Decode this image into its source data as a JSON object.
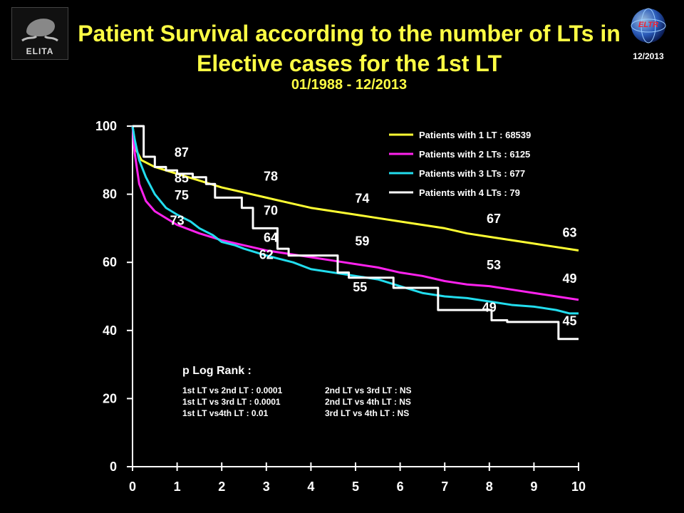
{
  "logos": {
    "left_label": "ELITA",
    "left_icon": "liver-hands-logo",
    "right_label": "ELTR",
    "right_icon": "globe-logo",
    "date_tag": "12/2013"
  },
  "title": "Patient Survival according to the number of LTs in Elective cases for the 1st LT",
  "subtitle": "01/1988 - 12/2013",
  "colors": {
    "background": "#000000",
    "title": "#ffff44",
    "series": [
      "#ffff33",
      "#ff22ee",
      "#22ddee",
      "#ffffff"
    ]
  },
  "stats": {
    "heading": "p Log Rank :",
    "rows": [
      [
        "1st LT vs 2nd LT : 0.0001",
        "2nd  LT vs 3rd LT  : NS"
      ],
      [
        "1st LT vs 3rd LT : 0.0001",
        "2nd LT vs 4th LT : NS"
      ],
      [
        "1st LT vs4th LT : 0.01",
        "3rd LT vs 4th LT : NS"
      ]
    ]
  },
  "chart_data": {
    "type": "line",
    "xlabel": "",
    "ylabel": "",
    "xlim": [
      0,
      10
    ],
    "ylim": [
      0,
      100
    ],
    "x_ticks": [
      0,
      1,
      2,
      3,
      4,
      5,
      6,
      7,
      8,
      9,
      10
    ],
    "y_ticks": [
      0,
      20,
      40,
      60,
      80,
      100
    ],
    "grid": false,
    "legend_position": "top-right",
    "series": [
      {
        "name": "Patients with 1 LT : 68539",
        "color": "#ffff33",
        "step": false,
        "points": [
          [
            0,
            100
          ],
          [
            0.08,
            93
          ],
          [
            0.2,
            90
          ],
          [
            0.5,
            88
          ],
          [
            1,
            86
          ],
          [
            1.5,
            84
          ],
          [
            2,
            82
          ],
          [
            2.5,
            80.5
          ],
          [
            3,
            79
          ],
          [
            3.5,
            77.5
          ],
          [
            4,
            76
          ],
          [
            4.5,
            75
          ],
          [
            5,
            74
          ],
          [
            5.5,
            73
          ],
          [
            6,
            72
          ],
          [
            6.5,
            71
          ],
          [
            7,
            70
          ],
          [
            7.5,
            68.5
          ],
          [
            8,
            67.5
          ],
          [
            8.5,
            66.5
          ],
          [
            9,
            65.5
          ],
          [
            9.5,
            64.5
          ],
          [
            10,
            63.5
          ]
        ]
      },
      {
        "name": "Patients with 2 LTs : 6125",
        "color": "#ff22ee",
        "step": false,
        "points": [
          [
            0,
            100
          ],
          [
            0.05,
            92
          ],
          [
            0.15,
            83
          ],
          [
            0.3,
            78
          ],
          [
            0.5,
            75
          ],
          [
            1,
            71
          ],
          [
            1.5,
            68.5
          ],
          [
            2,
            66.5
          ],
          [
            2.5,
            65
          ],
          [
            3,
            63.5
          ],
          [
            3.5,
            62.5
          ],
          [
            4,
            61.5
          ],
          [
            4.5,
            60.5
          ],
          [
            5,
            59.5
          ],
          [
            5.5,
            58.5
          ],
          [
            6,
            57
          ],
          [
            6.5,
            56
          ],
          [
            7,
            54.5
          ],
          [
            7.5,
            53.5
          ],
          [
            8,
            53
          ],
          [
            8.5,
            52
          ],
          [
            9,
            51
          ],
          [
            9.5,
            50
          ],
          [
            10,
            49
          ]
        ]
      },
      {
        "name": "Patients with 3 LTs : 677",
        "color": "#22ddee",
        "step": false,
        "points": [
          [
            0,
            100
          ],
          [
            0.05,
            96
          ],
          [
            0.15,
            90
          ],
          [
            0.3,
            85
          ],
          [
            0.5,
            80
          ],
          [
            0.75,
            76
          ],
          [
            1,
            74
          ],
          [
            1.3,
            72
          ],
          [
            1.5,
            70
          ],
          [
            1.8,
            68
          ],
          [
            2,
            66
          ],
          [
            2.3,
            65
          ],
          [
            2.5,
            64
          ],
          [
            3,
            62
          ],
          [
            3.3,
            61
          ],
          [
            3.6,
            60
          ],
          [
            4,
            58
          ],
          [
            4.5,
            57
          ],
          [
            5,
            56
          ],
          [
            5.5,
            55
          ],
          [
            6,
            53
          ],
          [
            6.5,
            51
          ],
          [
            7,
            50
          ],
          [
            7.5,
            49.5
          ],
          [
            8,
            48.5
          ],
          [
            8.5,
            47.5
          ],
          [
            9,
            47
          ],
          [
            9.5,
            46
          ],
          [
            9.8,
            45
          ],
          [
            10,
            45
          ]
        ]
      },
      {
        "name": "Patients with 4 LTs : 79",
        "color": "#ffffff",
        "step": true,
        "points": [
          [
            0,
            100
          ],
          [
            0.25,
            91
          ],
          [
            0.5,
            88
          ],
          [
            0.75,
            87
          ],
          [
            1,
            86
          ],
          [
            1.35,
            85
          ],
          [
            1.65,
            83
          ],
          [
            1.85,
            79
          ],
          [
            2.2,
            79
          ],
          [
            2.45,
            76
          ],
          [
            2.7,
            70
          ],
          [
            3,
            70
          ],
          [
            3.25,
            64
          ],
          [
            3.5,
            62
          ],
          [
            4.3,
            62
          ],
          [
            4.6,
            57
          ],
          [
            4.85,
            55.5
          ],
          [
            5.6,
            55.5
          ],
          [
            5.85,
            52.5
          ],
          [
            6.6,
            52.5
          ],
          [
            6.85,
            46
          ],
          [
            8,
            46
          ],
          [
            8.05,
            43
          ],
          [
            8.4,
            42.5
          ],
          [
            9.3,
            42.5
          ],
          [
            9.55,
            37.5
          ],
          [
            10,
            37.5
          ]
        ]
      }
    ],
    "annotations": [
      {
        "x": 1.1,
        "y": 91,
        "text": "87"
      },
      {
        "x": 1.1,
        "y": 83.5,
        "text": "85"
      },
      {
        "x": 1.1,
        "y": 78.5,
        "text": "75"
      },
      {
        "x": 1.0,
        "y": 71,
        "text": "73"
      },
      {
        "x": 3.1,
        "y": 84,
        "text": "78"
      },
      {
        "x": 3.1,
        "y": 74,
        "text": "70"
      },
      {
        "x": 3.1,
        "y": 66,
        "text": "64"
      },
      {
        "x": 3.0,
        "y": 61,
        "text": "62"
      },
      {
        "x": 5.15,
        "y": 77.5,
        "text": "74"
      },
      {
        "x": 5.15,
        "y": 65,
        "text": "59"
      },
      {
        "x": 5.1,
        "y": 51.5,
        "text": "55"
      },
      {
        "x": 8.1,
        "y": 71.5,
        "text": "67"
      },
      {
        "x": 8.1,
        "y": 58,
        "text": "53"
      },
      {
        "x": 8.0,
        "y": 45.5,
        "text": "49"
      },
      {
        "x": 9.8,
        "y": 67.5,
        "text": "63"
      },
      {
        "x": 9.8,
        "y": 54,
        "text": "49"
      },
      {
        "x": 9.8,
        "y": 41.5,
        "text": "45"
      }
    ]
  }
}
